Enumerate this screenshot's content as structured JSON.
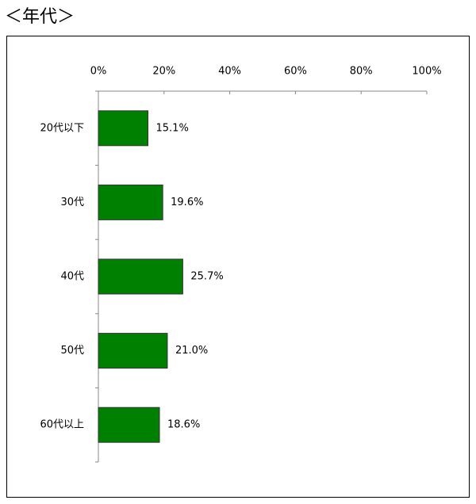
{
  "chart_data": {
    "type": "hbar",
    "title": "＜年代＞",
    "categories": [
      "20代以下",
      "30代",
      "40代",
      "50代",
      "60代以上"
    ],
    "values": [
      15.1,
      19.6,
      25.7,
      21.0,
      18.6
    ],
    "value_labels": [
      "15.1%",
      "19.6%",
      "25.7%",
      "21.0%",
      "18.6%"
    ],
    "color": "#008000",
    "xlim": [
      0,
      100
    ],
    "xticks": [
      {
        "value": 0,
        "label": "0%"
      },
      {
        "value": 20,
        "label": "20%"
      },
      {
        "value": 40,
        "label": "40%"
      },
      {
        "value": 60,
        "label": "60%"
      },
      {
        "value": 80,
        "label": "80%"
      },
      {
        "value": 100,
        "label": "100%"
      }
    ]
  }
}
